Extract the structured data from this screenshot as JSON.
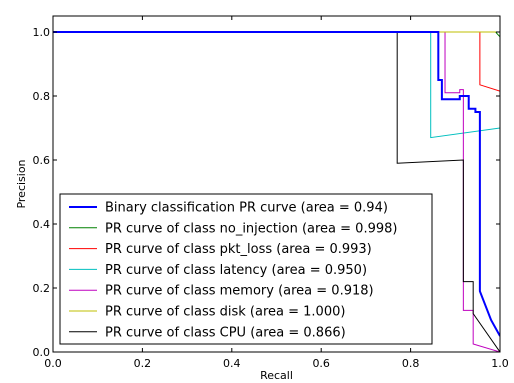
{
  "chart_data": {
    "type": "line",
    "title": "",
    "xlabel": "Recall",
    "ylabel": "Precision",
    "xlim": [
      0.0,
      1.0
    ],
    "ylim": [
      0.0,
      1.05
    ],
    "x_ticks": [
      "0.0",
      "0.2",
      "0.4",
      "0.6",
      "0.8",
      "1.0"
    ],
    "y_ticks": [
      "0.0",
      "0.2",
      "0.4",
      "0.6",
      "0.8",
      "1.0"
    ],
    "grid": false,
    "legend_position": "lower-left",
    "series": [
      {
        "name": "Binary classification PR curve (area = 0.94)",
        "color": "#0000ff",
        "line_width": 2,
        "x": [
          0.0,
          0.862,
          0.862,
          0.87,
          0.87,
          0.91,
          0.91,
          0.93,
          0.93,
          0.945,
          0.945,
          0.955,
          0.955,
          0.98,
          1.0
        ],
        "y": [
          1.0,
          1.0,
          0.85,
          0.85,
          0.79,
          0.79,
          0.8,
          0.8,
          0.76,
          0.76,
          0.75,
          0.75,
          0.19,
          0.1,
          0.05
        ]
      },
      {
        "name": "PR curve of class no_injection (area = 0.998)",
        "color": "#008000",
        "line_width": 1,
        "x": [
          0.0,
          0.99,
          1.0
        ],
        "y": [
          1.0,
          1.0,
          0.985
        ]
      },
      {
        "name": "PR curve of class pkt_loss (area = 0.993)",
        "color": "#ff0000",
        "line_width": 1,
        "x": [
          0.0,
          0.955,
          0.955,
          1.0
        ],
        "y": [
          1.0,
          1.0,
          0.835,
          0.815
        ]
      },
      {
        "name": "PR curve of class latency (area = 0.950)",
        "color": "#00bfbf",
        "line_width": 1,
        "x": [
          0.0,
          0.845,
          0.845,
          1.0
        ],
        "y": [
          1.0,
          1.0,
          0.67,
          0.7
        ]
      },
      {
        "name": "PR curve of class memory (area = 0.918)",
        "color": "#bf00bf",
        "line_width": 1,
        "x": [
          0.0,
          0.877,
          0.877,
          0.91,
          0.91,
          0.918,
          0.918,
          0.94,
          0.94,
          1.0
        ],
        "y": [
          1.0,
          1.0,
          0.81,
          0.81,
          0.82,
          0.82,
          0.13,
          0.13,
          0.025,
          0.0
        ]
      },
      {
        "name": "PR curve of class disk (area = 1.000)",
        "color": "#bfbf00",
        "line_width": 1,
        "x": [
          0.0,
          1.0
        ],
        "y": [
          1.0,
          1.0
        ]
      },
      {
        "name": "PR curve of class CPU (area = 0.866)",
        "color": "#000000",
        "line_width": 1,
        "x": [
          0.0,
          0.77,
          0.77,
          0.918,
          0.918,
          0.94,
          0.94,
          1.0
        ],
        "y": [
          1.0,
          1.0,
          0.59,
          0.6,
          0.22,
          0.22,
          0.12,
          0.0
        ]
      }
    ]
  }
}
